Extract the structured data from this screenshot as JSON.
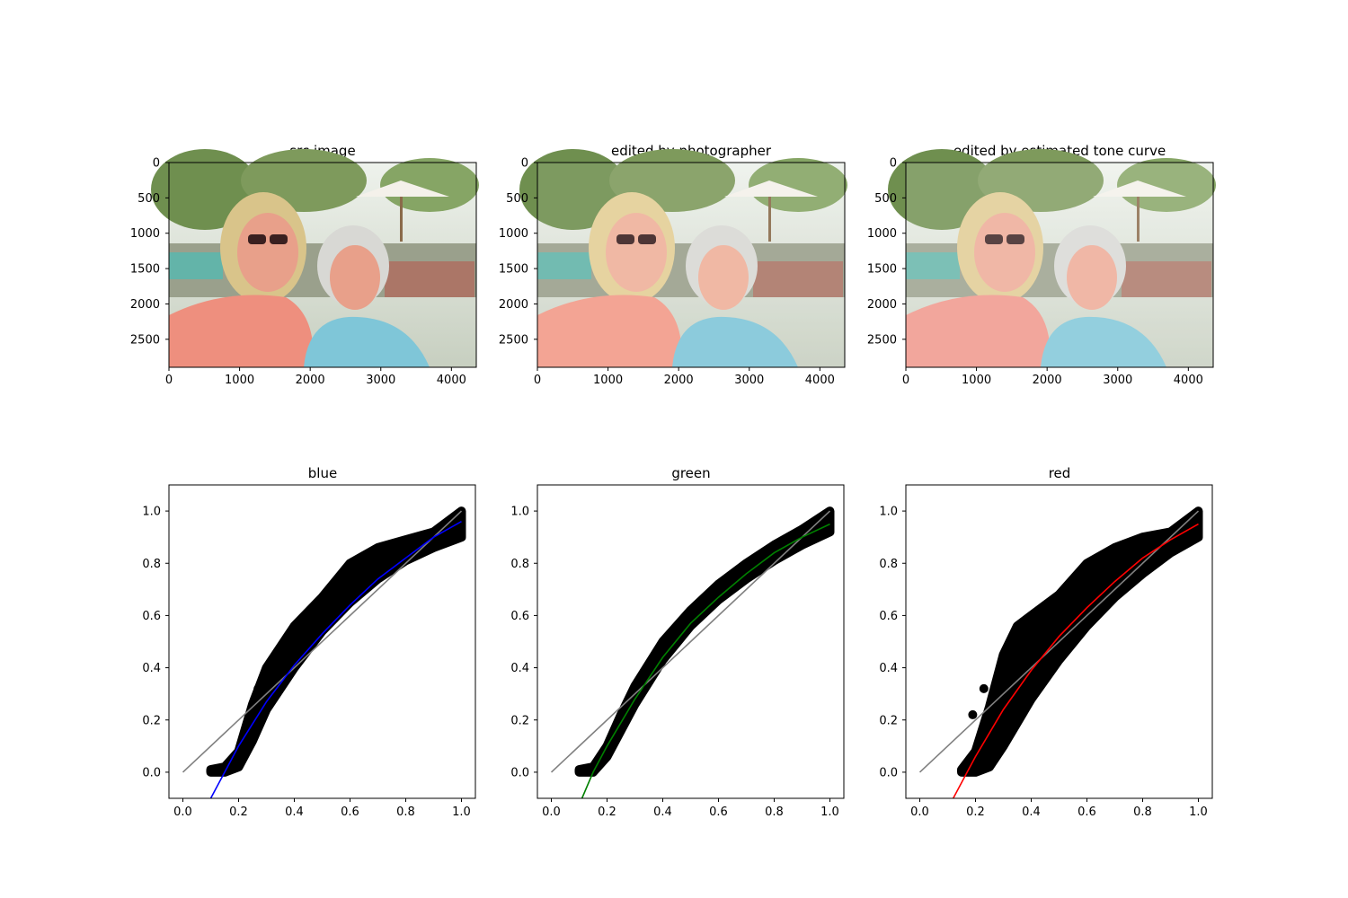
{
  "images": [
    {
      "title": "src image",
      "xticks": [
        0,
        1000,
        2000,
        3000,
        4000
      ],
      "yticks": [
        0,
        500,
        1000,
        1500,
        2000,
        2500
      ],
      "width": 4352,
      "height": 2896,
      "variant": "src"
    },
    {
      "title": "edited by photographer",
      "xticks": [
        0,
        1000,
        2000,
        3000,
        4000
      ],
      "yticks": [
        0,
        500,
        1000,
        1500,
        2000,
        2500
      ],
      "width": 4352,
      "height": 2896,
      "variant": "edited"
    },
    {
      "title": "edited by estimated tone curve",
      "xticks": [
        0,
        1000,
        2000,
        3000,
        4000
      ],
      "yticks": [
        0,
        500,
        1000,
        1500,
        2000,
        2500
      ],
      "width": 4352,
      "height": 2896,
      "variant": "curve"
    }
  ],
  "chart_data": [
    {
      "type": "scatter",
      "title": "blue",
      "xlim": [
        -0.05,
        1.05
      ],
      "ylim": [
        -0.1,
        1.1
      ],
      "xticks": [
        "0.0",
        "0.2",
        "0.4",
        "0.6",
        "0.8",
        "1.0"
      ],
      "yticks": [
        "0.0",
        "0.2",
        "0.4",
        "0.6",
        "0.8",
        "1.0"
      ],
      "scatter": {
        "color": "#000000",
        "lower": [
          [
            0.1,
            0.0
          ],
          [
            0.15,
            0.0
          ],
          [
            0.2,
            0.02
          ],
          [
            0.25,
            0.12
          ],
          [
            0.3,
            0.24
          ],
          [
            0.4,
            0.4
          ],
          [
            0.5,
            0.54
          ],
          [
            0.6,
            0.65
          ],
          [
            0.7,
            0.74
          ],
          [
            0.8,
            0.81
          ],
          [
            0.9,
            0.86
          ],
          [
            1.0,
            0.9
          ]
        ],
        "upper": [
          [
            1.0,
            1.0
          ],
          [
            0.9,
            0.92
          ],
          [
            0.8,
            0.89
          ],
          [
            0.7,
            0.86
          ],
          [
            0.6,
            0.8
          ],
          [
            0.5,
            0.67
          ],
          [
            0.4,
            0.56
          ],
          [
            0.3,
            0.4
          ],
          [
            0.25,
            0.26
          ],
          [
            0.2,
            0.08
          ],
          [
            0.15,
            0.02
          ],
          [
            0.1,
            0.01
          ]
        ],
        "outliers": [
          [
            0.27,
            0.32
          ]
        ]
      },
      "fit": {
        "color": "#0000ff",
        "points": [
          [
            0.1,
            -0.1
          ],
          [
            0.15,
            0.0
          ],
          [
            0.2,
            0.1
          ],
          [
            0.3,
            0.27
          ],
          [
            0.4,
            0.41
          ],
          [
            0.5,
            0.53
          ],
          [
            0.6,
            0.64
          ],
          [
            0.7,
            0.74
          ],
          [
            0.8,
            0.82
          ],
          [
            0.9,
            0.9
          ],
          [
            1.0,
            0.96
          ]
        ]
      },
      "identity": {
        "color": "#808080",
        "points": [
          [
            0.0,
            0.0
          ],
          [
            1.0,
            1.0
          ]
        ]
      }
    },
    {
      "type": "scatter",
      "title": "green",
      "xlim": [
        -0.05,
        1.05
      ],
      "ylim": [
        -0.1,
        1.1
      ],
      "xticks": [
        "0.0",
        "0.2",
        "0.4",
        "0.6",
        "0.8",
        "1.0"
      ],
      "yticks": [
        "0.0",
        "0.2",
        "0.4",
        "0.6",
        "0.8",
        "1.0"
      ],
      "scatter": {
        "color": "#000000",
        "lower": [
          [
            0.1,
            0.0
          ],
          [
            0.15,
            0.0
          ],
          [
            0.2,
            0.06
          ],
          [
            0.25,
            0.16
          ],
          [
            0.3,
            0.26
          ],
          [
            0.4,
            0.43
          ],
          [
            0.5,
            0.56
          ],
          [
            0.6,
            0.66
          ],
          [
            0.7,
            0.74
          ],
          [
            0.8,
            0.81
          ],
          [
            0.9,
            0.87
          ],
          [
            1.0,
            0.92
          ]
        ],
        "upper": [
          [
            1.0,
            1.0
          ],
          [
            0.9,
            0.93
          ],
          [
            0.8,
            0.87
          ],
          [
            0.7,
            0.8
          ],
          [
            0.6,
            0.72
          ],
          [
            0.5,
            0.62
          ],
          [
            0.4,
            0.5
          ],
          [
            0.3,
            0.33
          ],
          [
            0.25,
            0.22
          ],
          [
            0.2,
            0.1
          ],
          [
            0.15,
            0.02
          ],
          [
            0.1,
            0.01
          ]
        ],
        "outliers": []
      },
      "fit": {
        "color": "#008000",
        "points": [
          [
            0.11,
            -0.1
          ],
          [
            0.15,
            0.0
          ],
          [
            0.2,
            0.1
          ],
          [
            0.3,
            0.28
          ],
          [
            0.4,
            0.44
          ],
          [
            0.5,
            0.57
          ],
          [
            0.6,
            0.67
          ],
          [
            0.7,
            0.76
          ],
          [
            0.8,
            0.84
          ],
          [
            0.9,
            0.9
          ],
          [
            1.0,
            0.95
          ]
        ]
      },
      "identity": {
        "color": "#808080",
        "points": [
          [
            0.0,
            0.0
          ],
          [
            1.0,
            1.0
          ]
        ]
      }
    },
    {
      "type": "scatter",
      "title": "red",
      "xlim": [
        -0.05,
        1.05
      ],
      "ylim": [
        -0.1,
        1.1
      ],
      "xticks": [
        "0.0",
        "0.2",
        "0.4",
        "0.6",
        "0.8",
        "1.0"
      ],
      "yticks": [
        "0.0",
        "0.2",
        "0.4",
        "0.6",
        "0.8",
        "1.0"
      ],
      "scatter": {
        "color": "#000000",
        "lower": [
          [
            0.15,
            0.0
          ],
          [
            0.2,
            0.0
          ],
          [
            0.25,
            0.02
          ],
          [
            0.3,
            0.1
          ],
          [
            0.4,
            0.28
          ],
          [
            0.5,
            0.43
          ],
          [
            0.6,
            0.56
          ],
          [
            0.7,
            0.67
          ],
          [
            0.8,
            0.76
          ],
          [
            0.9,
            0.84
          ],
          [
            1.0,
            0.9
          ]
        ],
        "upper": [
          [
            1.0,
            1.0
          ],
          [
            0.9,
            0.92
          ],
          [
            0.8,
            0.9
          ],
          [
            0.7,
            0.86
          ],
          [
            0.6,
            0.8
          ],
          [
            0.5,
            0.68
          ],
          [
            0.4,
            0.6
          ],
          [
            0.35,
            0.56
          ],
          [
            0.3,
            0.45
          ],
          [
            0.25,
            0.25
          ],
          [
            0.2,
            0.08
          ],
          [
            0.15,
            0.01
          ]
        ],
        "outliers": [
          [
            0.23,
            0.32
          ],
          [
            0.19,
            0.22
          ]
        ]
      },
      "fit": {
        "color": "#ff0000",
        "points": [
          [
            0.12,
            -0.1
          ],
          [
            0.17,
            0.0
          ],
          [
            0.2,
            0.06
          ],
          [
            0.3,
            0.24
          ],
          [
            0.4,
            0.39
          ],
          [
            0.5,
            0.52
          ],
          [
            0.6,
            0.63
          ],
          [
            0.7,
            0.73
          ],
          [
            0.8,
            0.82
          ],
          [
            0.9,
            0.89
          ],
          [
            1.0,
            0.95
          ]
        ]
      },
      "identity": {
        "color": "#808080",
        "points": [
          [
            0.0,
            0.0
          ],
          [
            1.0,
            1.0
          ]
        ]
      }
    }
  ]
}
